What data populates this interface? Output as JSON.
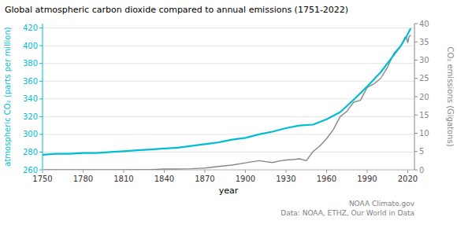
{
  "chart_data": {
    "type": "line",
    "title": "Global atmospheric carbon dioxide compared to annual emissions (1751-2022)",
    "xlabel": "year",
    "ylabel": "atmospheric CO₂ (parts per million)",
    "y2label": "CO₂ emissions (Gigatons)",
    "annotations": [
      "NOAA Climate.gov",
      "Data: NOAA, ETHZ, Our World in Data"
    ],
    "xlim": [
      1750,
      2025
    ],
    "ylim": [
      260,
      425
    ],
    "y2lim": [
      0,
      40
    ],
    "xticks": [
      1750,
      1780,
      1810,
      1840,
      1870,
      1900,
      1930,
      1960,
      1990,
      2020
    ],
    "yticks": [
      260,
      280,
      300,
      320,
      340,
      360,
      380,
      400,
      420
    ],
    "y2ticks": [
      0,
      5,
      10,
      15,
      20,
      25,
      30,
      35,
      40
    ],
    "grid": true,
    "series": [
      {
        "color": "#00bcd4",
        "x": [
          1750,
          1760,
          1770,
          1780,
          1790,
          1800,
          1810,
          1820,
          1830,
          1840,
          1850,
          1860,
          1870,
          1880,
          1890,
          1900,
          1910,
          1920,
          1930,
          1940,
          1950,
          1960,
          1970,
          1980,
          1990,
          2000,
          2010,
          2015,
          2020,
          2022
        ],
        "values": [
          277,
          278,
          278,
          279,
          279,
          280,
          281,
          282,
          283,
          284,
          285,
          287,
          289,
          291,
          294,
          296,
          300,
          303,
          307,
          310,
          311,
          317,
          325,
          339,
          354,
          370,
          390,
          400,
          413,
          419
        ]
      },
      {
        "color": "#888888",
        "axis": "y2",
        "x": [
          1751,
          1760,
          1770,
          1780,
          1790,
          1800,
          1810,
          1820,
          1830,
          1840,
          1850,
          1860,
          1870,
          1880,
          1890,
          1900,
          1910,
          1920,
          1925,
          1930,
          1935,
          1940,
          1945,
          1950,
          1955,
          1960,
          1965,
          1970,
          1975,
          1980,
          1985,
          1990,
          1995,
          2000,
          2005,
          2010,
          2015,
          2018,
          2019,
          2020,
          2021,
          2022
        ],
        "values": [
          0.003,
          0.004,
          0.005,
          0.006,
          0.01,
          0.015,
          0.02,
          0.05,
          0.09,
          0.2,
          0.2,
          0.3,
          0.5,
          0.9,
          1.3,
          1.9,
          2.5,
          2.0,
          2.4,
          2.7,
          2.8,
          3.0,
          2.5,
          5.0,
          6.5,
          8.5,
          11.0,
          14.5,
          16.0,
          18.5,
          19.0,
          22.5,
          23.5,
          25.0,
          28.0,
          32.0,
          34.0,
          36.2,
          36.4,
          34.8,
          36.4,
          36.8
        ]
      }
    ]
  }
}
